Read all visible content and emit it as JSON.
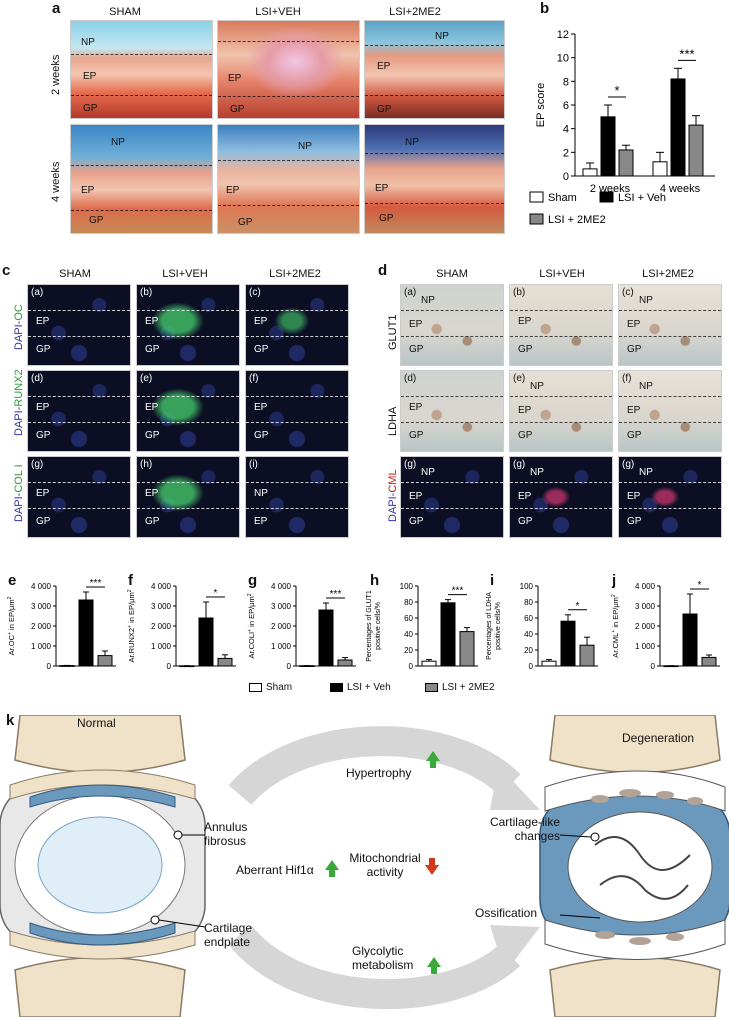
{
  "panel_a": {
    "letter": "a",
    "columns": [
      "SHAM",
      "LSI+VEH",
      "LSI+2ME2"
    ],
    "rows": [
      "2 weeks",
      "4 weeks"
    ],
    "tile_labels": [
      [
        "NP",
        "EP",
        "GP"
      ],
      [
        "EP",
        "GP"
      ],
      [
        "NP",
        "EP",
        "GP"
      ],
      [
        "NP",
        "EP",
        "GP"
      ],
      [
        "NP",
        "EP",
        "GP"
      ],
      [
        "NP",
        "EP",
        "GP"
      ]
    ]
  },
  "panel_c": {
    "letter": "c",
    "columns": [
      "SHAM",
      "LSI+VEH",
      "LSI+2ME2"
    ],
    "rows": [
      {
        "prefix": "DAPI-",
        "marker": "OC"
      },
      {
        "prefix": "DAPI-",
        "marker": "RUNX2"
      },
      {
        "prefix": "DAPI-",
        "marker": "COL I"
      }
    ],
    "tile_subs": [
      "(a)",
      "(b)",
      "(c)",
      "(d)",
      "(e)",
      "(f)",
      "(g)",
      "(h)",
      "(i)"
    ],
    "tile_labels": [
      [
        "EP",
        "GP"
      ],
      [
        "EP",
        "GP"
      ],
      [
        "EP",
        "GP"
      ],
      [
        "EP",
        "GP"
      ],
      [
        "EP",
        "GP"
      ],
      [
        "EP",
        "GP"
      ],
      [
        "EP",
        "GP"
      ],
      [
        "EP",
        "GP"
      ],
      [
        "NP",
        "EP"
      ]
    ]
  },
  "panel_d": {
    "letter": "d",
    "columns": [
      "SHAM",
      "LSI+VEH",
      "LSI+2ME2"
    ],
    "rows": [
      {
        "prefix": "GLUT1",
        "marker": ""
      },
      {
        "prefix": "LDHA",
        "marker": ""
      },
      {
        "prefix": "DAPI-",
        "marker": "CML"
      }
    ],
    "tile_subs": [
      "(a)",
      "(b)",
      "(c)",
      "(d)",
      "(e)",
      "(f)",
      "(g)",
      "(g)",
      "(g)"
    ],
    "tile_labels": [
      [
        "NP",
        "EP",
        "GP"
      ],
      [
        "EP",
        "GP"
      ],
      [
        "NP",
        "EP",
        "GP"
      ],
      [
        "EP",
        "GP"
      ],
      [
        "NP",
        "EP",
        "GP"
      ],
      [
        "NP",
        "EP",
        "GP"
      ],
      [
        "NP",
        "EP",
        "GP"
      ],
      [
        "NP",
        "EP",
        "GP"
      ],
      [
        "NP",
        "EP",
        "GP"
      ]
    ]
  },
  "legend_groups": [
    "Sham",
    "LSI + Veh",
    "LSI + 2ME2"
  ],
  "chart_data": [
    {
      "id": "b",
      "type": "bar",
      "categories": [
        "2 weeks",
        "4 weeks"
      ],
      "series": [
        {
          "name": "Sham",
          "values": [
            0.6,
            1.2
          ],
          "errors": [
            0.5,
            0.8
          ]
        },
        {
          "name": "LSI + Veh",
          "values": [
            5.0,
            8.2
          ],
          "errors": [
            1.0,
            0.9
          ]
        },
        {
          "name": "LSI + 2ME2",
          "values": [
            2.2,
            4.3
          ],
          "errors": [
            0.4,
            0.8
          ]
        }
      ],
      "ylabel": "EP score",
      "ylim": [
        0,
        12
      ],
      "yticks": [
        0,
        2,
        4,
        6,
        8,
        10,
        12
      ],
      "significance": [
        "*",
        "***"
      ]
    },
    {
      "id": "e",
      "type": "bar",
      "categories": [
        "Sham",
        "LSI + Veh",
        "LSI + 2ME2"
      ],
      "values": [
        20,
        3300,
        520
      ],
      "errors": [
        10,
        400,
        230
      ],
      "ylabel_pre": "Ar.OC",
      "ylabel_post": " in EP/μm",
      "ylim": [
        0,
        4000
      ],
      "yticks": [
        0,
        1000,
        2000,
        3000,
        4000
      ],
      "ytick_labels": [
        "0",
        "1 000",
        "2 000",
        "3 000",
        "4 000"
      ],
      "significance": "***"
    },
    {
      "id": "f",
      "type": "bar",
      "categories": [
        "Sham",
        "LSI + Veh",
        "LSI + 2ME2"
      ],
      "values": [
        10,
        2400,
        380
      ],
      "errors": [
        5,
        800,
        180
      ],
      "ylabel_pre": "Ar.RUNX2",
      "ylabel_post": " in EP/μm",
      "ylim": [
        0,
        4000
      ],
      "yticks": [
        0,
        1000,
        2000,
        3000,
        4000
      ],
      "ytick_labels": [
        "0",
        "1 000",
        "2 000",
        "3 000",
        "4 000"
      ],
      "significance": "*"
    },
    {
      "id": "g",
      "type": "bar",
      "categories": [
        "Sham",
        "LSI + Veh",
        "LSI + 2ME2"
      ],
      "values": [
        15,
        2800,
        300
      ],
      "errors": [
        5,
        350,
        120
      ],
      "ylabel_pre": "Ar.COLI",
      "ylabel_post": " in EP/μm",
      "ylim": [
        0,
        4000
      ],
      "yticks": [
        0,
        1000,
        2000,
        3000,
        4000
      ],
      "ytick_labels": [
        "0",
        "1 000",
        "2 000",
        "3 000",
        "4 000"
      ],
      "significance": "***"
    },
    {
      "id": "h",
      "type": "bar",
      "categories": [
        "Sham",
        "LSI + Veh",
        "LSI + 2ME2"
      ],
      "values": [
        6,
        79,
        43
      ],
      "errors": [
        2,
        4,
        5
      ],
      "ylabel_line1": "Percentages of GLUT1",
      "ylabel_line2": "positive cells/%",
      "ylim": [
        0,
        100
      ],
      "yticks": [
        0,
        20,
        40,
        60,
        80,
        100
      ],
      "ytick_labels": [
        "0",
        "20",
        "40",
        "60",
        "80",
        "100"
      ],
      "significance": "***"
    },
    {
      "id": "i",
      "type": "bar",
      "categories": [
        "Sham",
        "LSI + Veh",
        "LSI + 2ME2"
      ],
      "values": [
        6,
        56,
        26
      ],
      "errors": [
        2,
        8,
        10
      ],
      "ylabel_line1": "Percentages of LDHA",
      "ylabel_line2": "positive cells/%",
      "ylim": [
        0,
        100
      ],
      "yticks": [
        0,
        20,
        40,
        60,
        80,
        100
      ],
      "ytick_labels": [
        "0",
        "20",
        "40",
        "60",
        "80",
        "100"
      ],
      "significance": "*"
    },
    {
      "id": "j",
      "type": "bar",
      "categories": [
        "Sham",
        "LSI + Veh",
        "LSI + 2ME2"
      ],
      "values": [
        10,
        2600,
        430
      ],
      "errors": [
        5,
        1000,
        120
      ],
      "ylabel_pre": "Ar.CML",
      "ylabel_post": " in EP/μm",
      "ylim": [
        0,
        4000
      ],
      "yticks": [
        0,
        1000,
        2000,
        3000,
        4000
      ],
      "ytick_labels": [
        "0",
        "1 000",
        "2 000",
        "3 000",
        "4 000"
      ],
      "significance": "*"
    }
  ],
  "panel_k": {
    "letter": "k",
    "normal": "Normal",
    "degeneration": "Degeneration",
    "annulus": "Annulus\nfibrosus",
    "aberrant": "Aberrant Hif1α",
    "cartilage_endplate": "Cartilage\nendplate",
    "hypertrophy": "Hypertrophy",
    "mitochondrial": "Mitochondrial\nactivity",
    "glycolytic": "Glycolytic\nmetabolism",
    "cartilage_like": "Cartilage-like\nchanges",
    "ossification": "Ossification",
    "colors": {
      "up": "#3aa83a",
      "down": "#d23a1e",
      "bone": "#f0e2c8",
      "disc": "#bcd3e6",
      "endplate": "#6b98bd"
    }
  }
}
